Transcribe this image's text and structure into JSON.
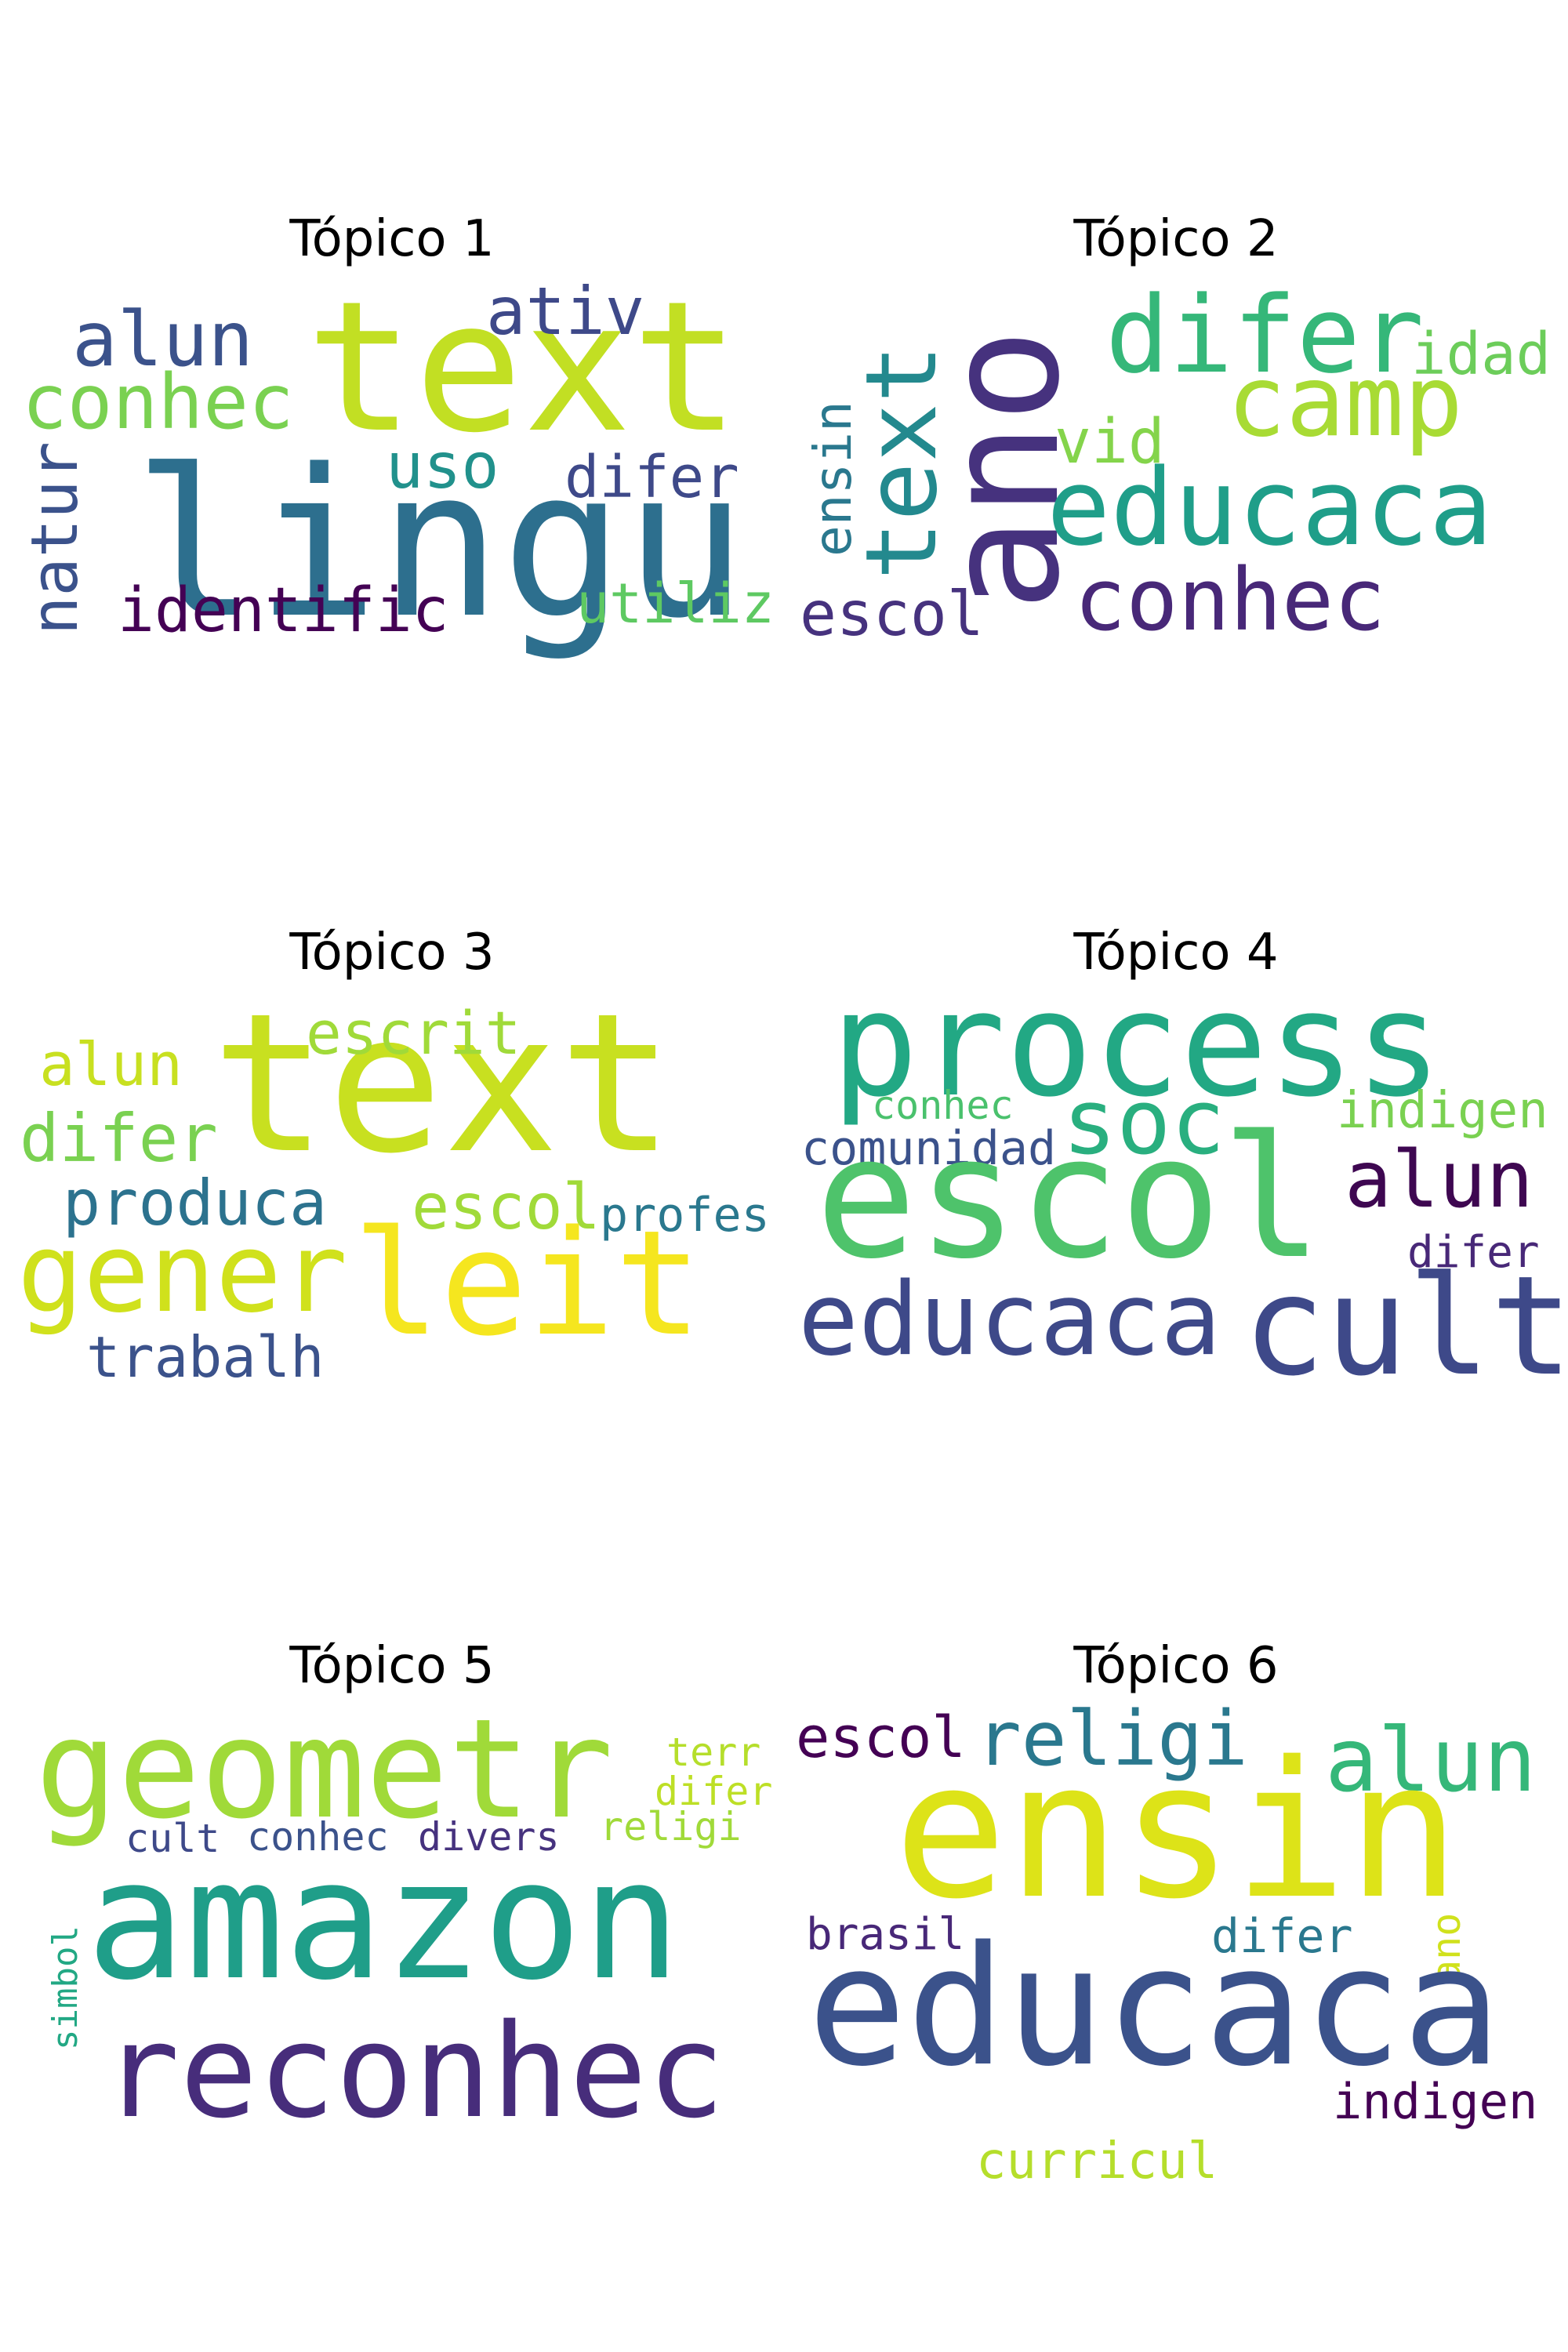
{
  "topics": [
    {
      "title": "Tópico 1",
      "words": [
        {
          "text": "text"
        },
        {
          "text": "lingu"
        },
        {
          "text": "alun"
        },
        {
          "text": "ativ"
        },
        {
          "text": "conhec"
        },
        {
          "text": "uso"
        },
        {
          "text": "difer"
        },
        {
          "text": "natur"
        },
        {
          "text": "identific"
        },
        {
          "text": "utiliz"
        }
      ]
    },
    {
      "title": "Tópico 2",
      "words": [
        {
          "text": "ano"
        },
        {
          "text": "text"
        },
        {
          "text": "ensin"
        },
        {
          "text": "difer"
        },
        {
          "text": "idad"
        },
        {
          "text": "camp"
        },
        {
          "text": "vid"
        },
        {
          "text": "educaca"
        },
        {
          "text": "conhec"
        },
        {
          "text": "escol"
        }
      ]
    },
    {
      "title": "Tópico 3",
      "words": [
        {
          "text": "text"
        },
        {
          "text": "escrit"
        },
        {
          "text": "alun"
        },
        {
          "text": "difer"
        },
        {
          "text": "produca"
        },
        {
          "text": "escol"
        },
        {
          "text": "profes"
        },
        {
          "text": "gener"
        },
        {
          "text": "leit"
        },
        {
          "text": "trabalh"
        }
      ]
    },
    {
      "title": "Tópico 4",
      "words": [
        {
          "text": "process"
        },
        {
          "text": "conhec"
        },
        {
          "text": "soc"
        },
        {
          "text": "indigen"
        },
        {
          "text": "comunidad"
        },
        {
          "text": "escol"
        },
        {
          "text": "alun"
        },
        {
          "text": "difer"
        },
        {
          "text": "educaca"
        },
        {
          "text": "cult"
        }
      ]
    },
    {
      "title": "Tópico 5",
      "words": [
        {
          "text": "geometr"
        },
        {
          "text": "terr"
        },
        {
          "text": "difer"
        },
        {
          "text": "cult"
        },
        {
          "text": "conhec"
        },
        {
          "text": "divers"
        },
        {
          "text": "religi"
        },
        {
          "text": "simbol"
        },
        {
          "text": "amazon"
        },
        {
          "text": "reconhec"
        }
      ]
    },
    {
      "title": "Tópico 6",
      "words": [
        {
          "text": "escol"
        },
        {
          "text": "religi"
        },
        {
          "text": "alun"
        },
        {
          "text": "ensin"
        },
        {
          "text": "brasil"
        },
        {
          "text": "difer"
        },
        {
          "text": "ano"
        },
        {
          "text": "educaca"
        },
        {
          "text": "indigen"
        },
        {
          "text": "curricul"
        }
      ]
    }
  ]
}
